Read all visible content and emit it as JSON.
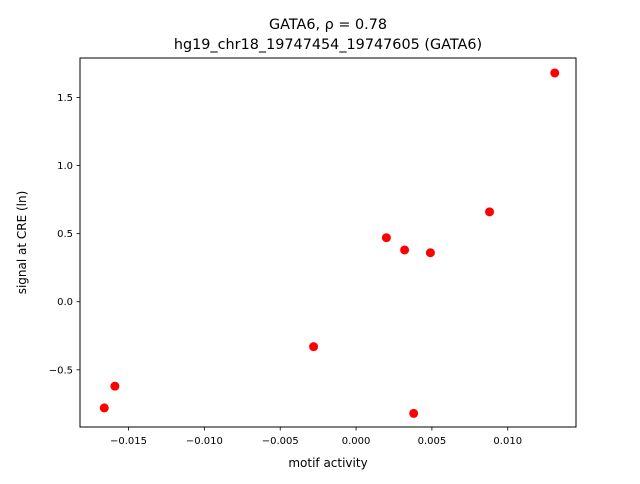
{
  "chart_data": {
    "type": "scatter",
    "title_line1": "GATA6, ρ = 0.78",
    "title_line2": "hg19_chr18_19747454_19747605 (GATA6)",
    "xlabel": "motif activity",
    "ylabel": "signal at CRE (ln)",
    "xlim": [
      -0.0182,
      0.0145
    ],
    "ylim": [
      -0.92,
      1.79
    ],
    "xticks": [
      -0.015,
      -0.01,
      -0.005,
      0.0,
      0.005,
      0.01
    ],
    "xtick_labels": [
      "−0.015",
      "−0.010",
      "−0.005",
      "0.000",
      "0.005",
      "0.010"
    ],
    "yticks": [
      -0.5,
      0.0,
      0.5,
      1.0,
      1.5
    ],
    "ytick_labels": [
      "−0.5",
      "0.0",
      "0.5",
      "1.0",
      "1.5"
    ],
    "grid": false,
    "marker_color": "#ff0000",
    "series": [
      {
        "x": [
          -0.0166,
          -0.0159,
          -0.0028,
          0.002,
          0.0032,
          0.0038,
          0.0049,
          0.0088,
          0.0131
        ],
        "y": [
          -0.78,
          -0.62,
          -0.33,
          0.47,
          0.38,
          -0.82,
          0.36,
          0.66,
          1.68
        ]
      }
    ]
  }
}
